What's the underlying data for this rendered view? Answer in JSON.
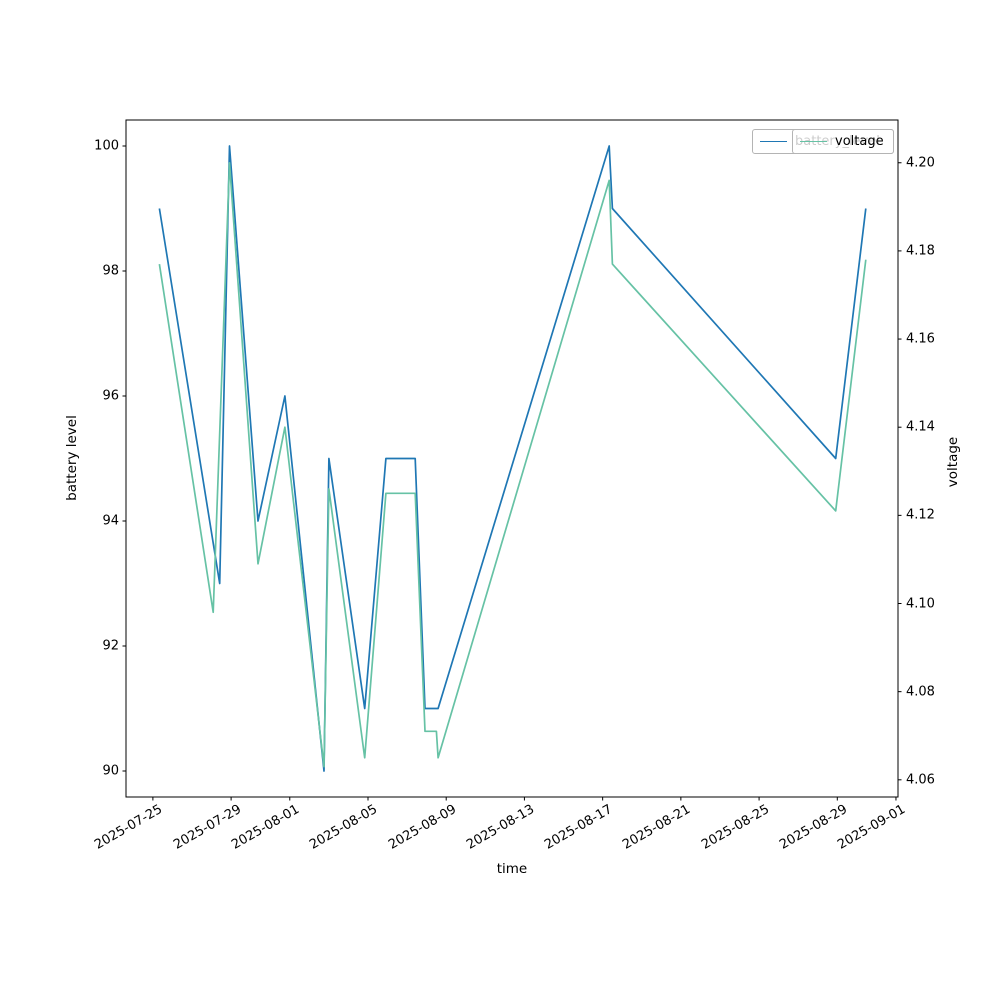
{
  "figure": {
    "background": "#ffffff"
  },
  "chart_data": {
    "type": "line",
    "title": "",
    "xlabel": "time",
    "ylabel_left": "battery level",
    "ylabel_right": "voltage",
    "grid": false,
    "legend_position": "upper right",
    "x_ticks": {
      "dates": [
        "2025-07-25",
        "2025-07-29",
        "2025-08-01",
        "2025-08-05",
        "2025-08-09",
        "2025-08-13",
        "2025-08-17",
        "2025-08-21",
        "2025-08-25",
        "2025-08-29",
        "2025-09-01"
      ],
      "labels": [
        "2025-07-25",
        "2025-07-29",
        "2025-08-01",
        "2025-08-05",
        "2025-08-09",
        "2025-08-13",
        "2025-08-17",
        "2025-08-21",
        "2025-08-25",
        "2025-08-29",
        "2025-09-01"
      ]
    },
    "y_left_ticks": {
      "values": [
        90,
        92,
        94,
        96,
        98,
        100
      ],
      "labels": [
        "90",
        "92",
        "94",
        "96",
        "98",
        "100"
      ]
    },
    "y_right_ticks": {
      "values": [
        4.06,
        4.08,
        4.1,
        4.12,
        4.14,
        4.16,
        4.18,
        4.2
      ],
      "labels": [
        "4.06",
        "4.08",
        "4.10",
        "4.12",
        "4.14",
        "4.16",
        "4.18",
        "4.20"
      ]
    },
    "xlim": [
      "2025-07-23T15:00:00",
      "2025-09-01T02:30:00"
    ],
    "ylim_left": [
      89.584,
      100.416
    ],
    "ylim_right": [
      4.0561,
      4.2097
    ],
    "series": [
      {
        "name": "battery_level",
        "axis": "left",
        "color": "#1f77b4",
        "points": [
          [
            "2025-07-25T08:00:00",
            99
          ],
          [
            "2025-07-28T10:00:00",
            93
          ],
          [
            "2025-07-28T22:00:00",
            100
          ],
          [
            "2025-07-30T09:00:00",
            94
          ],
          [
            "2025-07-31T18:00:00",
            96
          ],
          [
            "2025-08-02T18:00:00",
            90
          ],
          [
            "2025-08-03T00:00:00",
            95
          ],
          [
            "2025-08-04T20:00:00",
            91
          ],
          [
            "2025-08-05T22:00:00",
            95
          ],
          [
            "2025-08-07T10:00:00",
            95
          ],
          [
            "2025-08-07T22:00:00",
            91
          ],
          [
            "2025-08-08T14:00:00",
            91
          ],
          [
            "2025-08-17T08:00:00",
            100
          ],
          [
            "2025-08-17T12:00:00",
            99
          ],
          [
            "2025-08-28T22:00:00",
            95
          ],
          [
            "2025-08-30T11:00:00",
            99
          ]
        ]
      },
      {
        "name": "voltage",
        "axis": "right",
        "color": "#66c2a5",
        "points": [
          [
            "2025-07-25T08:00:00",
            4.177
          ],
          [
            "2025-07-28T02:00:00",
            4.098
          ],
          [
            "2025-07-28T22:00:00",
            4.2
          ],
          [
            "2025-07-30T09:00:00",
            4.109
          ],
          [
            "2025-07-31T18:00:00",
            4.14
          ],
          [
            "2025-08-02T18:00:00",
            4.063
          ],
          [
            "2025-08-03T00:00:00",
            4.126
          ],
          [
            "2025-08-04T20:00:00",
            4.065
          ],
          [
            "2025-08-05T22:00:00",
            4.125
          ],
          [
            "2025-08-07T10:00:00",
            4.125
          ],
          [
            "2025-08-07T22:00:00",
            4.071
          ],
          [
            "2025-08-08T12:00:00",
            4.071
          ],
          [
            "2025-08-08T14:00:00",
            4.065
          ],
          [
            "2025-08-17T08:00:00",
            4.196
          ],
          [
            "2025-08-17T12:00:00",
            4.177
          ],
          [
            "2025-08-28T22:00:00",
            4.121
          ],
          [
            "2025-08-30T11:00:00",
            4.178
          ]
        ]
      }
    ]
  },
  "legend": {
    "battery_label": "battery_level",
    "voltage_label": "voltage"
  }
}
